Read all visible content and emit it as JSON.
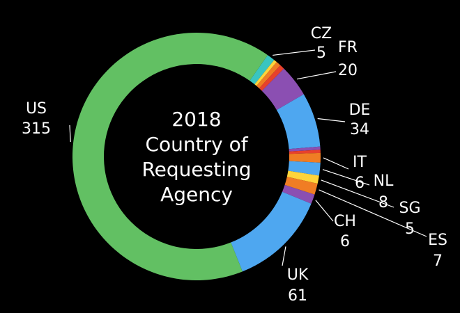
{
  "chart_data": {
    "type": "pie",
    "variant": "donut",
    "start_category": "CZ",
    "direction": "clockwise",
    "title_lines": [
      "2018",
      "Country of",
      "Requesting",
      "Agency"
    ],
    "slices": [
      {
        "category": "CZ",
        "value": 5,
        "color": "#39c5c0",
        "labeled": true
      },
      {
        "category": "",
        "value": 2,
        "color": "#ffd43b",
        "labeled": false
      },
      {
        "category": "",
        "value": 3,
        "color": "#f07d24",
        "labeled": false
      },
      {
        "category": "",
        "value": 3,
        "color": "#e8412c",
        "labeled": false
      },
      {
        "category": "FR",
        "value": 20,
        "color": "#8b4fb2",
        "labeled": true
      },
      {
        "category": "DE",
        "value": 34,
        "color": "#4ea7f0",
        "labeled": true
      },
      {
        "category": "",
        "value": 2,
        "color": "#8b4fb2",
        "labeled": false
      },
      {
        "category": "",
        "value": 2,
        "color": "#e8412c",
        "labeled": false
      },
      {
        "category": "IT",
        "value": 6,
        "color": "#f07d24",
        "labeled": true
      },
      {
        "category": "NL",
        "value": 8,
        "color": "#4ea7f0",
        "labeled": true
      },
      {
        "category": "SG",
        "value": 5,
        "color": "#ffd43b",
        "labeled": true
      },
      {
        "category": "ES",
        "value": 7,
        "color": "#f07d24",
        "labeled": true
      },
      {
        "category": "CH",
        "value": 6,
        "color": "#8b4fb2",
        "labeled": true
      },
      {
        "category": "UK",
        "value": 61,
        "color": "#4ea7f0",
        "labeled": true
      },
      {
        "category": "US",
        "value": 315,
        "color": "#62c063",
        "labeled": true
      }
    ]
  }
}
